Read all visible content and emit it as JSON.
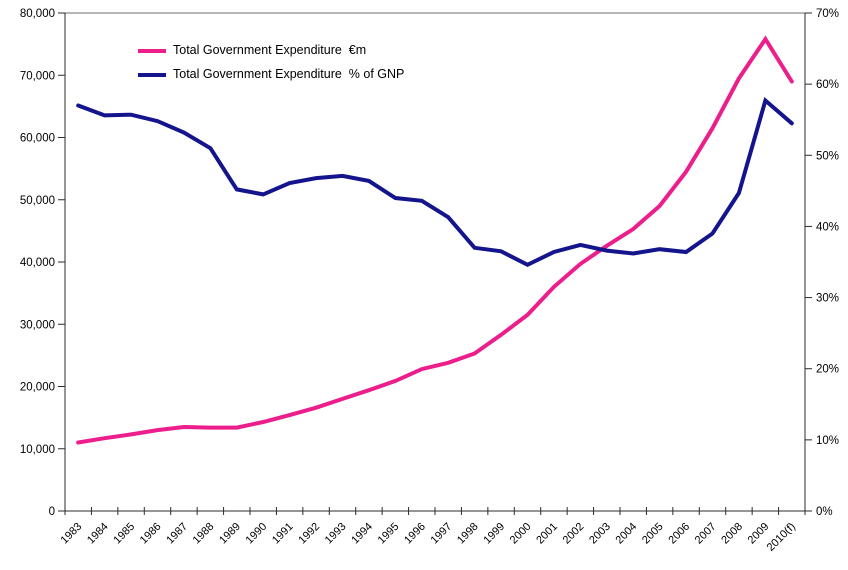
{
  "background_color": "#FFFFFF",
  "chart_data": {
    "type": "line",
    "title": "",
    "grid": "top-line-only",
    "legend_position": "top-left-inside",
    "categories": [
      "1983",
      "1984",
      "1985",
      "1986",
      "1987",
      "1988",
      "1989",
      "1990",
      "1991",
      "1992",
      "1993",
      "1994",
      "1995",
      "1996",
      "1997",
      "1998",
      "1999",
      "2000",
      "2001",
      "2002",
      "2003",
      "2004",
      "2005",
      "2006",
      "2007",
      "2008",
      "2009",
      "2010(f)"
    ],
    "left_axis": {
      "min": 0,
      "max": 80000,
      "step": 10000,
      "tick_labels": [
        "80,000",
        "70,000",
        "60,000",
        "50,000",
        "40,000",
        "30,000",
        "20,000",
        "10,000",
        "0"
      ]
    },
    "right_axis": {
      "min": 0,
      "max": 70,
      "step": 10,
      "tick_labels": [
        "70%",
        "60%",
        "50%",
        "40%",
        "30%",
        "20%",
        "10%",
        "0%"
      ]
    },
    "series": [
      {
        "name": "Total Government Expenditure  €m",
        "axis": "left",
        "color": "#EC1E8C",
        "values": [
          11000,
          11700,
          12300,
          13000,
          13500,
          13400,
          13400,
          14300,
          15400,
          16600,
          18000,
          19400,
          20900,
          22800,
          23800,
          25300,
          28300,
          31500,
          36000,
          39700,
          42600,
          45300,
          49000,
          54500,
          61500,
          69500,
          75800,
          69000
        ]
      },
      {
        "name": "Total Government Expenditure  % of GNP",
        "axis": "right",
        "color": "#14148C",
        "values": [
          57.0,
          55.6,
          55.7,
          54.8,
          53.2,
          51.0,
          45.2,
          44.5,
          46.1,
          46.8,
          47.1,
          46.4,
          44.0,
          43.6,
          41.3,
          37.0,
          36.5,
          34.6,
          36.4,
          37.4,
          36.6,
          36.2,
          36.8,
          36.4,
          39.0,
          44.7,
          57.7,
          54.5
        ]
      }
    ]
  },
  "legend": {
    "items": [
      {
        "label": "Total Government Expenditure  €m",
        "color": "#EC1E8C"
      },
      {
        "label": "Total Government Expenditure  % of GNP",
        "color": "#14148C"
      }
    ]
  }
}
